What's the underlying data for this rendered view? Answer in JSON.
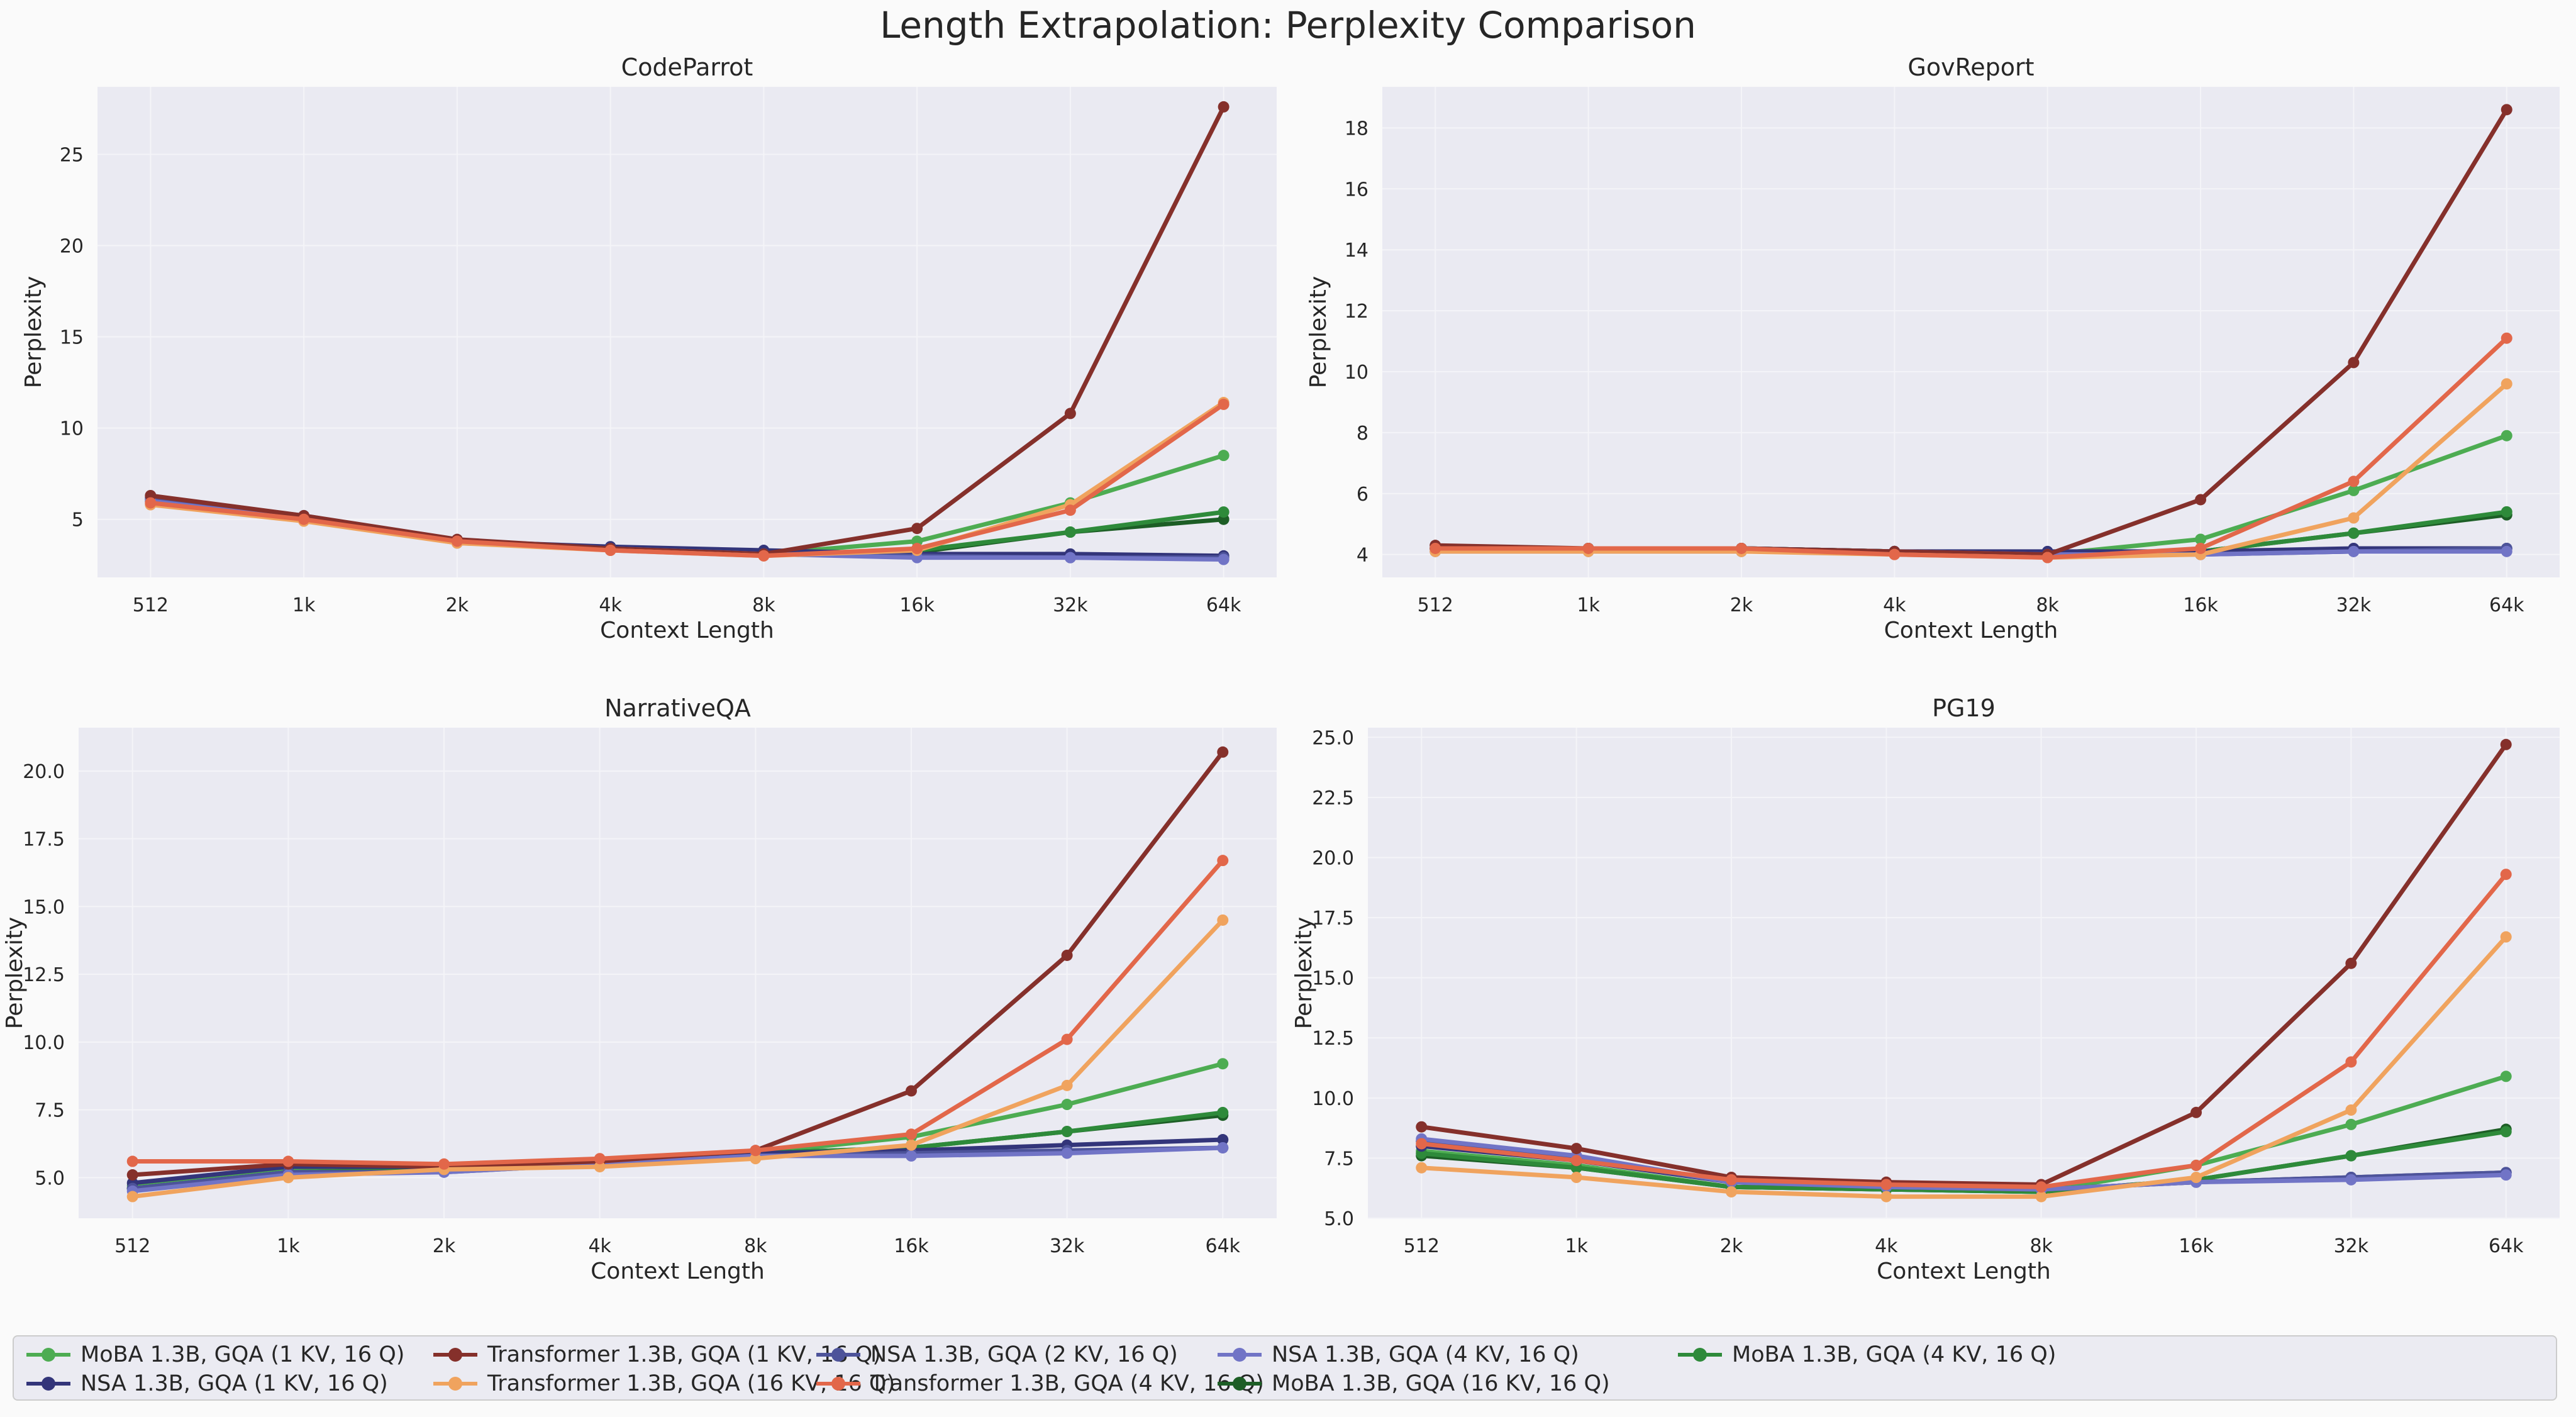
{
  "page": {
    "title": "Length Extrapolation: Perplexity Comparison"
  },
  "legend_order": [
    0,
    3,
    6,
    7,
    4,
    8,
    5,
    1,
    2
  ],
  "series_meta": [
    {
      "name": "MoBA 1.3B, GQA (1 KV, 16 Q)",
      "color": "#4dac52"
    },
    {
      "name": "MoBA 1.3B, GQA (16 KV, 16 Q)",
      "color": "#1d5e26"
    },
    {
      "name": "MoBA 1.3B, GQA (4 KV, 16 Q)",
      "color": "#2e8a3a"
    },
    {
      "name": "NSA 1.3B, GQA (1 KV, 16 Q)",
      "color": "#33357a"
    },
    {
      "name": "NSA 1.3B, GQA (2 KV, 16 Q)",
      "color": "#4d539a"
    },
    {
      "name": "NSA 1.3B, GQA (4 KV, 16 Q)",
      "color": "#7174c6"
    },
    {
      "name": "Transformer 1.3B, GQA (1 KV, 16 Q)",
      "color": "#85302b"
    },
    {
      "name": "Transformer 1.3B, GQA (16 KV, 16 Q)",
      "color": "#f0a35e"
    },
    {
      "name": "Transformer 1.3B, GQA (4 KV, 16 Q)",
      "color": "#e2674a"
    }
  ],
  "chart_data": [
    {
      "type": "line",
      "title": "CodeParrot",
      "xlabel": "Context Length",
      "ylabel": "Perplexity",
      "categories": [
        "512",
        "1k",
        "2k",
        "4k",
        "8k",
        "16k",
        "32k",
        "64k"
      ],
      "ylim": [
        1.82,
        28.7
      ],
      "yticks": [
        5,
        10,
        15,
        20,
        25
      ],
      "ytick_labels": [
        "5",
        "10",
        "15",
        "20",
        "25"
      ],
      "series": [
        {
          "values": [
            6.1,
            5.1,
            3.8,
            3.4,
            3.1,
            3.8,
            5.9,
            8.5
          ]
        },
        {
          "values": [
            6.0,
            5.0,
            3.8,
            3.4,
            3.1,
            3.2,
            4.3,
            5.0
          ]
        },
        {
          "values": [
            6.0,
            5.0,
            3.8,
            3.4,
            3.1,
            3.3,
            4.3,
            5.4
          ]
        },
        {
          "values": [
            6.2,
            5.2,
            3.8,
            3.5,
            3.3,
            3.1,
            3.1,
            3.0
          ]
        },
        {
          "values": [
            6.1,
            5.1,
            3.8,
            3.4,
            3.1,
            3.0,
            2.9,
            2.9
          ]
        },
        {
          "values": [
            6.0,
            5.0,
            3.7,
            3.4,
            3.1,
            2.9,
            2.9,
            2.8
          ]
        },
        {
          "values": [
            6.3,
            5.2,
            3.9,
            3.4,
            3.1,
            4.5,
            10.8,
            27.6
          ]
        },
        {
          "values": [
            5.8,
            4.9,
            3.7,
            3.3,
            3.0,
            3.3,
            5.8,
            11.4
          ]
        },
        {
          "values": [
            5.9,
            5.0,
            3.8,
            3.3,
            3.0,
            3.4,
            5.5,
            11.3
          ]
        }
      ]
    },
    {
      "type": "line",
      "title": "GovReport",
      "xlabel": "Context Length",
      "ylabel": "Perplexity",
      "categories": [
        "512",
        "1k",
        "2k",
        "4k",
        "8k",
        "16k",
        "32k",
        "64k"
      ],
      "ylim": [
        3.25,
        19.35
      ],
      "yticks": [
        4,
        6,
        8,
        10,
        12,
        14,
        16,
        18
      ],
      "ytick_labels": [
        "4",
        "6",
        "8",
        "10",
        "12",
        "14",
        "16",
        "18"
      ],
      "series": [
        {
          "values": [
            4.2,
            4.2,
            4.2,
            4.1,
            4.0,
            4.5,
            6.1,
            7.9
          ]
        },
        {
          "values": [
            4.2,
            4.2,
            4.2,
            4.1,
            4.0,
            4.1,
            4.7,
            5.3
          ]
        },
        {
          "values": [
            4.2,
            4.2,
            4.2,
            4.1,
            4.0,
            4.1,
            4.7,
            5.4
          ]
        },
        {
          "values": [
            4.2,
            4.2,
            4.2,
            4.1,
            4.1,
            4.1,
            4.2,
            4.2
          ]
        },
        {
          "values": [
            4.2,
            4.2,
            4.2,
            4.1,
            4.0,
            4.0,
            4.1,
            4.2
          ]
        },
        {
          "values": [
            4.1,
            4.1,
            4.1,
            4.1,
            4.0,
            4.0,
            4.1,
            4.1
          ]
        },
        {
          "values": [
            4.3,
            4.2,
            4.2,
            4.1,
            4.0,
            5.8,
            10.3,
            18.6
          ]
        },
        {
          "values": [
            4.1,
            4.1,
            4.1,
            4.0,
            3.9,
            4.0,
            5.2,
            9.6
          ]
        },
        {
          "values": [
            4.2,
            4.2,
            4.2,
            4.0,
            3.9,
            4.2,
            6.4,
            11.1
          ]
        }
      ]
    },
    {
      "type": "line",
      "title": "NarrativeQA",
      "xlabel": "Context Length",
      "ylabel": "Perplexity",
      "categories": [
        "512",
        "1k",
        "2k",
        "4k",
        "8k",
        "16k",
        "32k",
        "64k"
      ],
      "ylim": [
        3.5,
        21.6
      ],
      "yticks": [
        5,
        7.5,
        10,
        12.5,
        15,
        17.5,
        20
      ],
      "ytick_labels": [
        "5.0",
        "7.5",
        "10.0",
        "12.5",
        "15.0",
        "17.5",
        "20.0"
      ],
      "series": [
        {
          "values": [
            4.7,
            5.3,
            5.3,
            5.6,
            5.9,
            6.5,
            7.7,
            9.2
          ]
        },
        {
          "values": [
            4.6,
            5.2,
            5.3,
            5.6,
            5.9,
            6.1,
            6.7,
            7.3
          ]
        },
        {
          "values": [
            4.6,
            5.2,
            5.3,
            5.6,
            5.9,
            6.1,
            6.7,
            7.4
          ]
        },
        {
          "values": [
            4.8,
            5.4,
            5.4,
            5.6,
            5.9,
            6.0,
            6.2,
            6.4
          ]
        },
        {
          "values": [
            4.6,
            5.2,
            5.2,
            5.5,
            5.8,
            5.9,
            6.0,
            6.1
          ]
        },
        {
          "values": [
            4.5,
            5.1,
            5.2,
            5.5,
            5.8,
            5.8,
            5.9,
            6.1
          ]
        },
        {
          "values": [
            5.1,
            5.5,
            5.4,
            5.6,
            6.0,
            8.2,
            13.2,
            20.7
          ]
        },
        {
          "values": [
            4.3,
            5.0,
            5.3,
            5.4,
            5.7,
            6.2,
            8.4,
            14.5
          ]
        },
        {
          "values": [
            5.6,
            5.6,
            5.5,
            5.7,
            6.0,
            6.6,
            10.1,
            16.7
          ]
        }
      ]
    },
    {
      "type": "line",
      "title": "PG19",
      "xlabel": "Context Length",
      "ylabel": "Perplexity",
      "categories": [
        "512",
        "1k",
        "2k",
        "4k",
        "8k",
        "16k",
        "32k",
        "64k"
      ],
      "ylim": [
        5.0,
        25.4
      ],
      "yticks": [
        5,
        7.5,
        10,
        12.5,
        15,
        17.5,
        20,
        22.5,
        25
      ],
      "ytick_labels": [
        "5.0",
        "7.5",
        "10.0",
        "12.5",
        "15.0",
        "17.5",
        "20.0",
        "22.5",
        "25.0"
      ],
      "series": [
        {
          "values": [
            7.8,
            7.2,
            6.3,
            6.2,
            6.1,
            7.2,
            8.9,
            10.9
          ]
        },
        {
          "values": [
            7.6,
            7.1,
            6.3,
            6.2,
            6.1,
            6.6,
            7.6,
            8.7
          ]
        },
        {
          "values": [
            7.7,
            7.1,
            6.3,
            6.2,
            6.1,
            6.6,
            7.6,
            8.6
          ]
        },
        {
          "values": [
            8.0,
            7.4,
            6.5,
            6.3,
            6.2,
            6.5,
            6.7,
            6.9
          ]
        },
        {
          "values": [
            8.2,
            7.5,
            6.5,
            6.3,
            6.2,
            6.5,
            6.7,
            6.9
          ]
        },
        {
          "values": [
            8.3,
            7.6,
            6.5,
            6.3,
            6.2,
            6.5,
            6.6,
            6.8
          ]
        },
        {
          "values": [
            8.8,
            7.9,
            6.7,
            6.5,
            6.4,
            9.4,
            15.6,
            24.7
          ]
        },
        {
          "values": [
            7.1,
            6.7,
            6.1,
            5.9,
            5.9,
            6.7,
            9.5,
            16.7
          ]
        },
        {
          "values": [
            8.1,
            7.4,
            6.6,
            6.4,
            6.3,
            7.2,
            11.5,
            19.3
          ]
        }
      ]
    }
  ]
}
